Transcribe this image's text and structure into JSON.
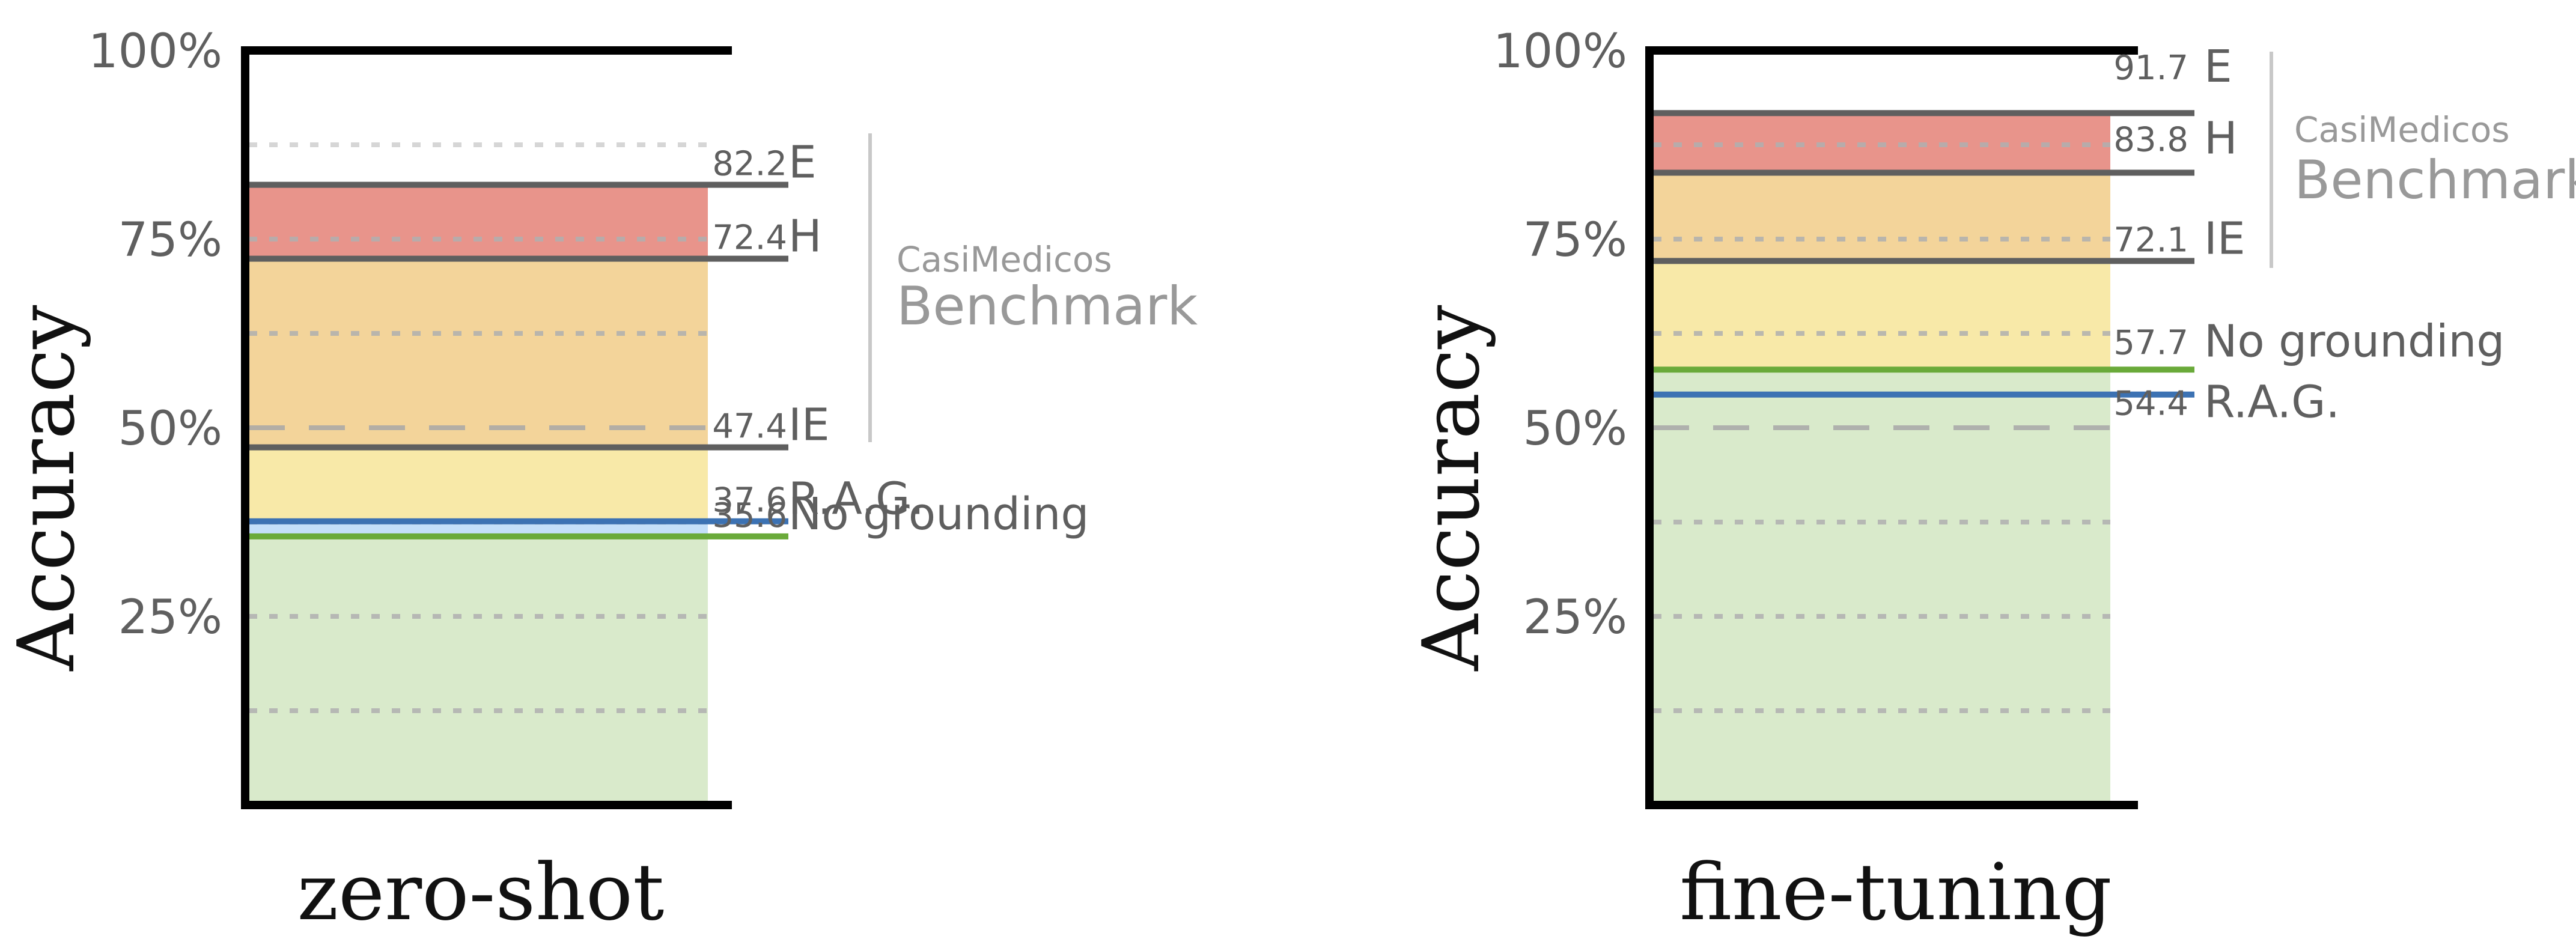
{
  "colors": {
    "text": "#5f5f5f",
    "axis": "#000000",
    "ref_line": "#5f5f5f",
    "bracket": "#c8c8c8",
    "benchmark_text": "#999999",
    "band_red": "#e8948b",
    "band_orange": "#f3d49a",
    "band_yellow": "#f8e9a8",
    "band_blue": "#c4dff9",
    "band_green": "#d9eacb",
    "grid_dotted": "#b0b0b0",
    "grid_light": "#d6d6d6",
    "grid_dashed": "#a8a8a8",
    "line_blue": "#3c72b3",
    "line_green": "#6aaa3a"
  },
  "chart_data": [
    {
      "type": "bar",
      "title": "zero-shot",
      "ylabel": "Accuracy",
      "ylim": [
        0,
        100
      ],
      "yticks": [
        "25%",
        "50%",
        "75%",
        "100%"
      ],
      "values": [
        {
          "label": "E",
          "value": 82.2,
          "value_text": "82.2",
          "kind": "reference"
        },
        {
          "label": "H",
          "value": 72.4,
          "value_text": "72.4",
          "kind": "reference"
        },
        {
          "label": "IE",
          "value": 47.4,
          "value_text": "47.4",
          "kind": "reference"
        },
        {
          "label": "R.A.G.",
          "value": 37.6,
          "value_text": "37.6",
          "kind": "model",
          "color": "#3c72b3"
        },
        {
          "label": "No grounding",
          "value": 35.6,
          "value_text": "35.6",
          "kind": "model",
          "color": "#6aaa3a"
        }
      ],
      "benchmark": {
        "small": "CasiMedicos",
        "large": "Benchmark"
      }
    },
    {
      "type": "bar",
      "title": "fine-tuning",
      "ylabel": "Accuracy",
      "ylim": [
        0,
        100
      ],
      "yticks": [
        "25%",
        "50%",
        "75%",
        "100%"
      ],
      "values": [
        {
          "label": "E",
          "value": 91.7,
          "value_text": "91.7",
          "kind": "reference"
        },
        {
          "label": "H",
          "value": 83.8,
          "value_text": "83.8",
          "kind": "reference"
        },
        {
          "label": "IE",
          "value": 72.1,
          "value_text": "72.1",
          "kind": "reference"
        },
        {
          "label": "No grounding",
          "value": 57.7,
          "value_text": "57.7",
          "kind": "model",
          "color": "#6aaa3a"
        },
        {
          "label": "R.A.G.",
          "value": 54.4,
          "value_text": "54.4",
          "kind": "model",
          "color": "#3c72b3"
        }
      ],
      "benchmark": {
        "small": "CasiMedicos",
        "large": "Benchmark"
      }
    }
  ]
}
